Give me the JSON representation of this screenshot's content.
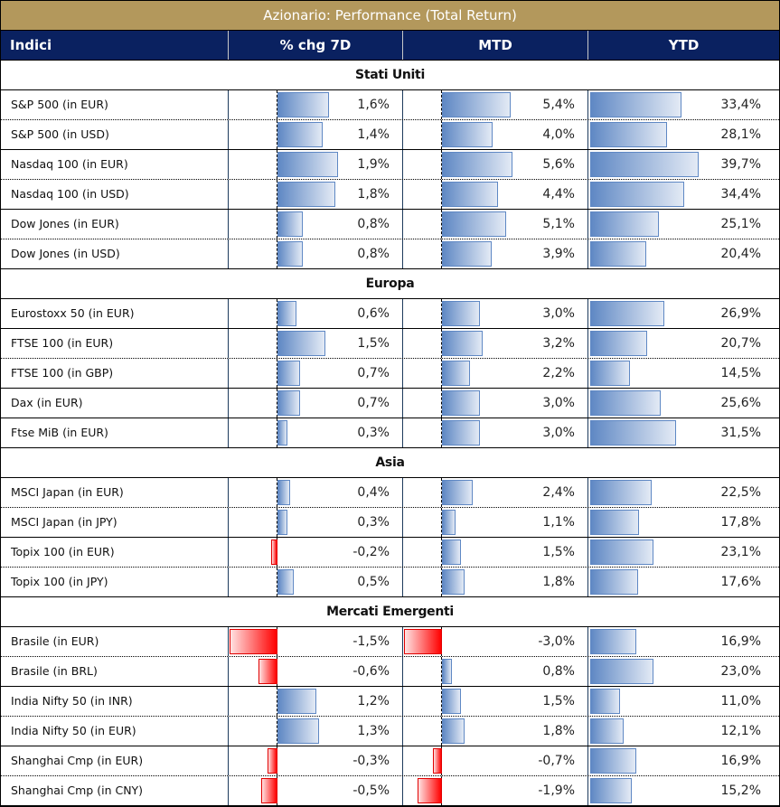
{
  "title": "Azionario: Performance (Total Return)",
  "columns": [
    "Indici",
    "% chg 7D",
    "MTD",
    "YTD"
  ],
  "colors": {
    "title_bg": "#b3985c",
    "header_bg": "#0a2160",
    "positive_bar": "#5f88c4",
    "negative_bar": "#ff0000"
  },
  "sections": [
    {
      "name": "Stati Uniti",
      "rows": [
        {
          "name": "S&P 500 (in EUR)",
          "d7": 1.6,
          "d7_label": "1,6%",
          "mtd": 5.4,
          "mtd_label": "5,4%",
          "ytd": 33.4,
          "ytd_label": "33,4%"
        },
        {
          "name": "S&P 500 (in USD)",
          "d7": 1.4,
          "d7_label": "1,4%",
          "mtd": 4.0,
          "mtd_label": "4,0%",
          "ytd": 28.1,
          "ytd_label": "28,1%"
        },
        {
          "name": "Nasdaq 100 (in EUR)",
          "d7": 1.9,
          "d7_label": "1,9%",
          "mtd": 5.6,
          "mtd_label": "5,6%",
          "ytd": 39.7,
          "ytd_label": "39,7%"
        },
        {
          "name": "Nasdaq 100 (in USD)",
          "d7": 1.8,
          "d7_label": "1,8%",
          "mtd": 4.4,
          "mtd_label": "4,4%",
          "ytd": 34.4,
          "ytd_label": "34,4%"
        },
        {
          "name": "Dow Jones (in EUR)",
          "d7": 0.8,
          "d7_label": "0,8%",
          "mtd": 5.1,
          "mtd_label": "5,1%",
          "ytd": 25.1,
          "ytd_label": "25,1%"
        },
        {
          "name": "Dow Jones (in USD)",
          "d7": 0.8,
          "d7_label": "0,8%",
          "mtd": 3.9,
          "mtd_label": "3,9%",
          "ytd": 20.4,
          "ytd_label": "20,4%"
        }
      ]
    },
    {
      "name": "Europa",
      "rows": [
        {
          "name": "Eurostoxx 50 (in EUR)",
          "d7": 0.6,
          "d7_label": "0,6%",
          "mtd": 3.0,
          "mtd_label": "3,0%",
          "ytd": 26.9,
          "ytd_label": "26,9%"
        },
        {
          "name": "FTSE 100 (in EUR)",
          "d7": 1.5,
          "d7_label": "1,5%",
          "mtd": 3.2,
          "mtd_label": "3,2%",
          "ytd": 20.7,
          "ytd_label": "20,7%"
        },
        {
          "name": "FTSE 100 (in GBP)",
          "d7": 0.7,
          "d7_label": "0,7%",
          "mtd": 2.2,
          "mtd_label": "2,2%",
          "ytd": 14.5,
          "ytd_label": "14,5%"
        },
        {
          "name": "Dax (in EUR)",
          "d7": 0.7,
          "d7_label": "0,7%",
          "mtd": 3.0,
          "mtd_label": "3,0%",
          "ytd": 25.6,
          "ytd_label": "25,6%"
        },
        {
          "name": "Ftse MiB (in EUR)",
          "d7": 0.3,
          "d7_label": "0,3%",
          "mtd": 3.0,
          "mtd_label": "3,0%",
          "ytd": 31.5,
          "ytd_label": "31,5%"
        }
      ]
    },
    {
      "name": "Asia",
      "rows": [
        {
          "name": "MSCI Japan (in EUR)",
          "d7": 0.4,
          "d7_label": "0,4%",
          "mtd": 2.4,
          "mtd_label": "2,4%",
          "ytd": 22.5,
          "ytd_label": "22,5%"
        },
        {
          "name": "MSCI Japan (in JPY)",
          "d7": 0.3,
          "d7_label": "0,3%",
          "mtd": 1.1,
          "mtd_label": "1,1%",
          "ytd": 17.8,
          "ytd_label": "17,8%"
        },
        {
          "name": "Topix 100 (in EUR)",
          "d7": -0.2,
          "d7_label": "-0,2%",
          "mtd": 1.5,
          "mtd_label": "1,5%",
          "ytd": 23.1,
          "ytd_label": "23,1%"
        },
        {
          "name": "Topix 100 (in JPY)",
          "d7": 0.5,
          "d7_label": "0,5%",
          "mtd": 1.8,
          "mtd_label": "1,8%",
          "ytd": 17.6,
          "ytd_label": "17,6%"
        }
      ]
    },
    {
      "name": "Mercati Emergenti",
      "rows": [
        {
          "name": "Brasile (in EUR)",
          "d7": -1.5,
          "d7_label": "-1,5%",
          "mtd": -3.0,
          "mtd_label": "-3,0%",
          "ytd": 16.9,
          "ytd_label": "16,9%"
        },
        {
          "name": "Brasile (in BRL)",
          "d7": -0.6,
          "d7_label": "-0,6%",
          "mtd": 0.8,
          "mtd_label": "0,8%",
          "ytd": 23.0,
          "ytd_label": "23,0%"
        },
        {
          "name": "India Nifty 50 (in INR)",
          "d7": 1.2,
          "d7_label": "1,2%",
          "mtd": 1.5,
          "mtd_label": "1,5%",
          "ytd": 11.0,
          "ytd_label": "11,0%"
        },
        {
          "name": "India Nifty 50 (in EUR)",
          "d7": 1.3,
          "d7_label": "1,3%",
          "mtd": 1.8,
          "mtd_label": "1,8%",
          "ytd": 12.1,
          "ytd_label": "12,1%"
        },
        {
          "name": "Shanghai Cmp (in EUR)",
          "d7": -0.3,
          "d7_label": "-0,3%",
          "mtd": -0.7,
          "mtd_label": "-0,7%",
          "ytd": 16.9,
          "ytd_label": "16,9%"
        },
        {
          "name": "Shanghai Cmp (in CNY)",
          "d7": -0.5,
          "d7_label": "-0,5%",
          "mtd": -1.9,
          "mtd_label": "-1,9%",
          "ytd": 15.2,
          "ytd_label": "15,2%"
        }
      ]
    }
  ]
}
